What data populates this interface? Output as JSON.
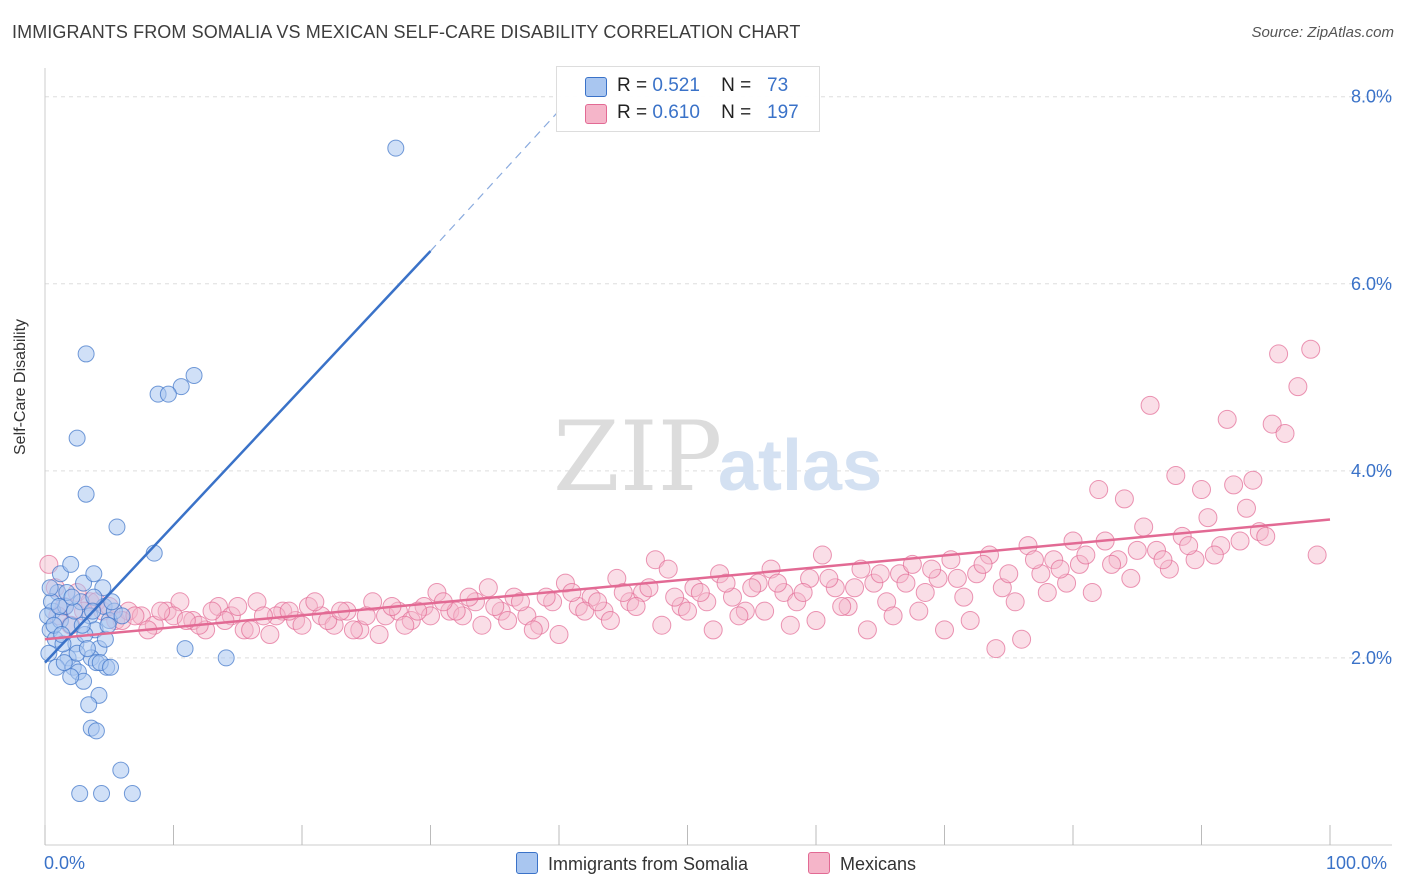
{
  "title": "IMMIGRANTS FROM SOMALIA VS MEXICAN SELF-CARE DISABILITY CORRELATION CHART",
  "source": "Source: ZipAtlas.com",
  "watermark": {
    "zip": "ZIP",
    "atlas": "atlas"
  },
  "colors": {
    "blue": "#3a72c8",
    "blue_fill": "#a9c6f0",
    "pink": "#e26a94",
    "pink_fill": "#f5b5c9",
    "grid": "#dddddd"
  },
  "legend": {
    "rows": [
      {
        "r_label": "R =",
        "r_value": "0.521",
        "n_label": "N =",
        "n_value": "73"
      },
      {
        "r_label": "R =",
        "r_value": "0.610",
        "n_label": "N =",
        "n_value": "197"
      }
    ]
  },
  "bottom_legend": {
    "somalia": "Immigrants from Somalia",
    "mexicans": "Mexicans"
  },
  "chart_data": {
    "type": "scatter",
    "title": "IMMIGRANTS FROM SOMALIA VS MEXICAN SELF-CARE DISABILITY CORRELATION CHART",
    "xlabel": "",
    "ylabel": "Self-Care Disability",
    "xlim": [
      0,
      100
    ],
    "ylim": [
      0,
      8.2
    ],
    "x_tick_labels": [
      "0.0%",
      "100.0%"
    ],
    "y_ticks": [
      2,
      4,
      6,
      8
    ],
    "y_tick_labels": [
      "2.0%",
      "4.0%",
      "6.0%",
      "8.0%"
    ],
    "grid": true,
    "legend_position": "top-center",
    "series": [
      {
        "name": "Immigrants from Somalia",
        "color": "#3a72c8",
        "R": 0.521,
        "N": 73,
        "trend": {
          "x0": 0.0,
          "y0": 1.95,
          "x1": 30.0,
          "y1": 6.35,
          "dashed_to_x": 40.0,
          "dashed_to_y": 7.85
        },
        "points": [
          [
            27.3,
            7.45
          ],
          [
            3.2,
            5.25
          ],
          [
            10.6,
            4.9
          ],
          [
            8.8,
            4.82
          ],
          [
            9.6,
            4.82
          ],
          [
            11.6,
            5.02
          ],
          [
            2.5,
            4.35
          ],
          [
            3.2,
            3.75
          ],
          [
            5.6,
            3.4
          ],
          [
            8.5,
            3.12
          ],
          [
            10.9,
            2.1
          ],
          [
            14.1,
            2.0
          ],
          [
            1.0,
            2.7
          ],
          [
            0.6,
            2.5
          ],
          [
            0.4,
            2.3
          ],
          [
            0.8,
            2.2
          ],
          [
            1.2,
            2.4
          ],
          [
            1.6,
            2.55
          ],
          [
            2.0,
            2.35
          ],
          [
            2.4,
            2.15
          ],
          [
            2.8,
            2.6
          ],
          [
            3.0,
            2.8
          ],
          [
            3.5,
            2.45
          ],
          [
            3.9,
            2.3
          ],
          [
            4.2,
            2.1
          ],
          [
            4.6,
            2.55
          ],
          [
            5.0,
            2.4
          ],
          [
            5.4,
            2.5
          ],
          [
            1.8,
            2.0
          ],
          [
            2.2,
            1.9
          ],
          [
            2.6,
            1.85
          ],
          [
            3.0,
            1.75
          ],
          [
            3.6,
            2.0
          ],
          [
            4.0,
            1.95
          ],
          [
            4.8,
            1.9
          ],
          [
            0.3,
            2.05
          ],
          [
            0.9,
            1.9
          ],
          [
            1.4,
            2.15
          ],
          [
            2.0,
            1.8
          ],
          [
            4.2,
            1.6
          ],
          [
            3.4,
            1.5
          ],
          [
            3.6,
            1.25
          ],
          [
            4.0,
            1.22
          ],
          [
            5.9,
            0.8
          ],
          [
            2.7,
            0.55
          ],
          [
            4.4,
            0.55
          ],
          [
            6.8,
            0.55
          ],
          [
            1.2,
            2.9
          ],
          [
            2.0,
            3.0
          ],
          [
            3.8,
            2.9
          ],
          [
            4.5,
            2.75
          ],
          [
            0.5,
            2.6
          ],
          [
            1.7,
            2.7
          ],
          [
            2.3,
            2.5
          ],
          [
            3.1,
            2.25
          ],
          [
            3.8,
            2.65
          ],
          [
            0.2,
            2.45
          ],
          [
            0.7,
            2.35
          ],
          [
            1.3,
            2.25
          ],
          [
            2.5,
            2.05
          ],
          [
            4.7,
            2.2
          ],
          [
            5.2,
            2.6
          ],
          [
            6.0,
            2.45
          ],
          [
            0.4,
            2.75
          ],
          [
            1.1,
            2.55
          ],
          [
            2.9,
            2.35
          ],
          [
            3.3,
            2.1
          ],
          [
            4.3,
            1.95
          ],
          [
            5.1,
            1.9
          ],
          [
            1.5,
            1.95
          ],
          [
            2.1,
            2.65
          ],
          [
            3.7,
            2.5
          ],
          [
            4.9,
            2.35
          ]
        ]
      },
      {
        "name": "Mexicans",
        "color": "#e26a94",
        "R": 0.61,
        "N": 197,
        "trend": {
          "x0": 0.0,
          "y0": 2.2,
          "x1": 100.0,
          "y1": 3.48
        },
        "points": [
          [
            0.3,
            3.0
          ],
          [
            0.8,
            2.75
          ],
          [
            1.5,
            2.55
          ],
          [
            2.5,
            2.7
          ],
          [
            3.5,
            2.6
          ],
          [
            4.5,
            2.5
          ],
          [
            5.5,
            2.4
          ],
          [
            6.5,
            2.5
          ],
          [
            7.5,
            2.45
          ],
          [
            8.5,
            2.35
          ],
          [
            9.5,
            2.5
          ],
          [
            10.5,
            2.6
          ],
          [
            11.5,
            2.4
          ],
          [
            12.5,
            2.3
          ],
          [
            13.5,
            2.55
          ],
          [
            14.5,
            2.45
          ],
          [
            15.5,
            2.3
          ],
          [
            16.5,
            2.6
          ],
          [
            17.5,
            2.25
          ],
          [
            18.5,
            2.5
          ],
          [
            19.5,
            2.4
          ],
          [
            20.5,
            2.55
          ],
          [
            21.5,
            2.45
          ],
          [
            22.5,
            2.35
          ],
          [
            23.5,
            2.5
          ],
          [
            24.5,
            2.3
          ],
          [
            25.5,
            2.6
          ],
          [
            26.5,
            2.45
          ],
          [
            27.5,
            2.5
          ],
          [
            28.5,
            2.4
          ],
          [
            29.5,
            2.55
          ],
          [
            30.5,
            2.7
          ],
          [
            31.5,
            2.5
          ],
          [
            32.5,
            2.45
          ],
          [
            33.5,
            2.6
          ],
          [
            34.5,
            2.75
          ],
          [
            35.5,
            2.5
          ],
          [
            36.5,
            2.65
          ],
          [
            37.5,
            2.45
          ],
          [
            38.5,
            2.35
          ],
          [
            39.5,
            2.6
          ],
          [
            40.5,
            2.8
          ],
          [
            41.5,
            2.55
          ],
          [
            42.5,
            2.65
          ],
          [
            43.5,
            2.5
          ],
          [
            44.5,
            2.85
          ],
          [
            45.5,
            2.6
          ],
          [
            46.5,
            2.7
          ],
          [
            47.5,
            3.05
          ],
          [
            48.5,
            2.95
          ],
          [
            49.5,
            2.55
          ],
          [
            50.5,
            2.75
          ],
          [
            51.5,
            2.6
          ],
          [
            52.5,
            2.9
          ],
          [
            53.5,
            2.65
          ],
          [
            54.5,
            2.5
          ],
          [
            55.5,
            2.8
          ],
          [
            56.5,
            2.95
          ],
          [
            57.5,
            2.7
          ],
          [
            58.5,
            2.6
          ],
          [
            59.5,
            2.85
          ],
          [
            60.5,
            3.1
          ],
          [
            61.5,
            2.75
          ],
          [
            62.5,
            2.55
          ],
          [
            63.5,
            2.95
          ],
          [
            64.5,
            2.8
          ],
          [
            65.5,
            2.6
          ],
          [
            66.5,
            2.9
          ],
          [
            67.5,
            3.0
          ],
          [
            68.5,
            2.7
          ],
          [
            69.5,
            2.85
          ],
          [
            70.5,
            3.05
          ],
          [
            71.5,
            2.65
          ],
          [
            72.5,
            2.9
          ],
          [
            73.5,
            3.1
          ],
          [
            74.5,
            2.75
          ],
          [
            75.5,
            2.6
          ],
          [
            76.5,
            3.2
          ],
          [
            77.5,
            2.9
          ],
          [
            78.5,
            3.05
          ],
          [
            79.5,
            2.8
          ],
          [
            80.5,
            3.0
          ],
          [
            81.5,
            2.7
          ],
          [
            82.5,
            3.25
          ],
          [
            83.5,
            3.05
          ],
          [
            84.5,
            2.85
          ],
          [
            85.5,
            3.4
          ],
          [
            86.5,
            3.15
          ],
          [
            87.5,
            2.95
          ],
          [
            88.5,
            3.3
          ],
          [
            89.5,
            3.05
          ],
          [
            90.5,
            3.5
          ],
          [
            91.5,
            3.2
          ],
          [
            92.5,
            3.85
          ],
          [
            93.5,
            3.6
          ],
          [
            94.5,
            3.35
          ],
          [
            95.5,
            4.5
          ],
          [
            96.5,
            4.4
          ],
          [
            97.5,
            4.9
          ],
          [
            98.5,
            5.3
          ],
          [
            99.0,
            3.1
          ],
          [
            96.0,
            5.25
          ],
          [
            94.0,
            3.9
          ],
          [
            92.0,
            4.55
          ],
          [
            90.0,
            3.8
          ],
          [
            88.0,
            3.95
          ],
          [
            86.0,
            4.7
          ],
          [
            84.0,
            3.7
          ],
          [
            82.0,
            3.8
          ],
          [
            80.0,
            3.25
          ],
          [
            78.0,
            2.7
          ],
          [
            76.0,
            2.2
          ],
          [
            74.0,
            2.1
          ],
          [
            72.0,
            2.4
          ],
          [
            70.0,
            2.3
          ],
          [
            68.0,
            2.5
          ],
          [
            66.0,
            2.45
          ],
          [
            64.0,
            2.3
          ],
          [
            62.0,
            2.55
          ],
          [
            60.0,
            2.4
          ],
          [
            58.0,
            2.35
          ],
          [
            56.0,
            2.5
          ],
          [
            54.0,
            2.45
          ],
          [
            52.0,
            2.3
          ],
          [
            50.0,
            2.5
          ],
          [
            48.0,
            2.35
          ],
          [
            46.0,
            2.55
          ],
          [
            44.0,
            2.4
          ],
          [
            42.0,
            2.5
          ],
          [
            40.0,
            2.25
          ],
          [
            38.0,
            2.3
          ],
          [
            36.0,
            2.4
          ],
          [
            34.0,
            2.35
          ],
          [
            32.0,
            2.5
          ],
          [
            30.0,
            2.45
          ],
          [
            28.0,
            2.35
          ],
          [
            26.0,
            2.25
          ],
          [
            24.0,
            2.3
          ],
          [
            22.0,
            2.4
          ],
          [
            20.0,
            2.35
          ],
          [
            18.0,
            2.45
          ],
          [
            16.0,
            2.3
          ],
          [
            14.0,
            2.4
          ],
          [
            12.0,
            2.35
          ],
          [
            10.0,
            2.45
          ],
          [
            8.0,
            2.3
          ],
          [
            6.0,
            2.4
          ],
          [
            4.0,
            2.6
          ],
          [
            2.0,
            2.35
          ],
          [
            1.0,
            2.45
          ],
          [
            3.0,
            2.5
          ],
          [
            5.0,
            2.55
          ],
          [
            7.0,
            2.45
          ],
          [
            9.0,
            2.5
          ],
          [
            11.0,
            2.4
          ],
          [
            13.0,
            2.5
          ],
          [
            15.0,
            2.55
          ],
          [
            17.0,
            2.45
          ],
          [
            19.0,
            2.5
          ],
          [
            21.0,
            2.6
          ],
          [
            23.0,
            2.5
          ],
          [
            25.0,
            2.45
          ],
          [
            27.0,
            2.55
          ],
          [
            29.0,
            2.5
          ],
          [
            31.0,
            2.6
          ],
          [
            33.0,
            2.65
          ],
          [
            35.0,
            2.55
          ],
          [
            37.0,
            2.6
          ],
          [
            39.0,
            2.65
          ],
          [
            41.0,
            2.7
          ],
          [
            43.0,
            2.6
          ],
          [
            45.0,
            2.7
          ],
          [
            47.0,
            2.75
          ],
          [
            49.0,
            2.65
          ],
          [
            51.0,
            2.7
          ],
          [
            53.0,
            2.8
          ],
          [
            55.0,
            2.75
          ],
          [
            57.0,
            2.8
          ],
          [
            59.0,
            2.7
          ],
          [
            61.0,
            2.85
          ],
          [
            63.0,
            2.75
          ],
          [
            65.0,
            2.9
          ],
          [
            67.0,
            2.8
          ],
          [
            69.0,
            2.95
          ],
          [
            71.0,
            2.85
          ],
          [
            73.0,
            3.0
          ],
          [
            75.0,
            2.9
          ],
          [
            77.0,
            3.05
          ],
          [
            79.0,
            2.95
          ],
          [
            81.0,
            3.1
          ],
          [
            83.0,
            3.0
          ],
          [
            85.0,
            3.15
          ],
          [
            87.0,
            3.05
          ],
          [
            89.0,
            3.2
          ],
          [
            91.0,
            3.1
          ],
          [
            93.0,
            3.25
          ],
          [
            95.0,
            3.3
          ]
        ]
      }
    ]
  }
}
